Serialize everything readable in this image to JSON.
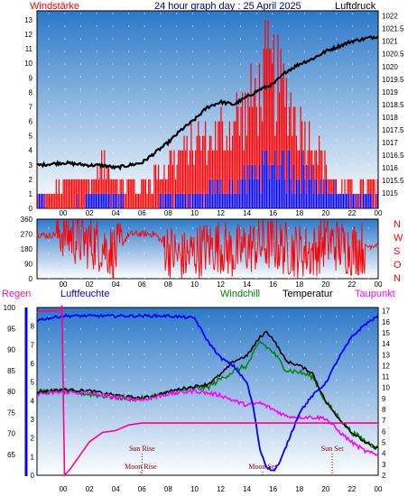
{
  "header": {
    "left_label": "Windstärke",
    "title": "24 hour graph day : 25 April 2025",
    "right_label": "Luftdruck"
  },
  "bottom_header": {
    "regen": "Regen",
    "luftfeuchte": "Luftfeuchte",
    "windchill": "Windchill",
    "temperatur": "Temperatur",
    "taupunkt": "Taupunkt"
  },
  "x_ticks": [
    "00",
    "02",
    "04",
    "06",
    "08",
    "10",
    "12",
    "14",
    "16",
    "18",
    "20",
    "22",
    "00"
  ],
  "colors": {
    "panel_top": "#2b78c8",
    "panel_bottom": "#ffffff",
    "wind": "#ff0000",
    "gust_blue": "#0000ff",
    "pressure": "#000000",
    "dir": "#ff0000",
    "humidity": "#0000ff",
    "temperature": "#000000",
    "windchill": "#008000",
    "dewpoint": "#ff00ff",
    "rain": "#ff0090"
  },
  "chart_data": [
    {
      "type": "line",
      "title": "24 hour graph day : 25 April 2025",
      "xlabel": "",
      "x_unit": "hour",
      "xlim": [
        -2,
        24
      ],
      "left_axis": {
        "label": "Windstärke",
        "ticks": [
          0,
          1,
          2,
          3,
          4,
          5,
          6,
          7,
          8,
          9,
          10,
          11,
          12,
          13
        ],
        "ylim": [
          0,
          13
        ]
      },
      "right_axis": {
        "label": "Luftdruck",
        "ticks": [
          "1015",
          "1015.5",
          "1016",
          "1016.5",
          "1017",
          "1017.5",
          "1018",
          "1018.5",
          "1019",
          "1019.5",
          "1020",
          "1020.5",
          "1021",
          "1021.5",
          "1022"
        ],
        "ylim": [
          1014.4,
          1022.2
        ]
      },
      "series": [
        {
          "name": "Luftdruck",
          "axis": "right",
          "x": [
            -2,
            0,
            2,
            3,
            4,
            5,
            6,
            8,
            9,
            10,
            11,
            12,
            13,
            14,
            15,
            16,
            17,
            18,
            19,
            20,
            21,
            22,
            23,
            24
          ],
          "y": [
            1016.1,
            1016.2,
            1016.1,
            1016.1,
            1016.0,
            1016.1,
            1016.2,
            1017.0,
            1017.5,
            1017.9,
            1018.4,
            1018.6,
            1018.5,
            1018.8,
            1019.1,
            1019.3,
            1019.8,
            1020.1,
            1020.3,
            1020.6,
            1020.8,
            1021.0,
            1021.1,
            1021.2
          ]
        },
        {
          "name": "Windstärke",
          "axis": "left",
          "x": [
            -2,
            0,
            1,
            2,
            3,
            4,
            5,
            6,
            7,
            8,
            9,
            10,
            11,
            12,
            13,
            14,
            15,
            15.5,
            16,
            16.5,
            17,
            18,
            19,
            20,
            21,
            22,
            23,
            24
          ],
          "y": [
            1,
            2,
            3,
            2,
            4,
            3,
            2,
            2,
            3,
            4,
            5,
            6,
            6,
            7,
            8,
            9,
            11,
            13,
            12,
            11,
            10,
            8,
            6,
            4,
            2,
            2,
            2,
            2
          ]
        },
        {
          "name": "Windstärke (min)",
          "axis": "left",
          "x": [
            -2,
            0,
            2,
            4,
            6,
            8,
            10,
            12,
            13,
            14,
            15,
            16,
            17,
            18,
            19,
            20,
            22,
            24
          ],
          "y": [
            1,
            0,
            1,
            1,
            0,
            1,
            1,
            2,
            2,
            3,
            4,
            5,
            4,
            4,
            3,
            2,
            1,
            1
          ]
        }
      ]
    },
    {
      "type": "line",
      "title": "",
      "x_unit": "hour",
      "xlim": [
        -2,
        24
      ],
      "left_axis": {
        "ticks": [
          0,
          90,
          180,
          270,
          360
        ],
        "ylim": [
          0,
          360
        ]
      },
      "right_axis": {
        "ticks": [
          "N",
          "W",
          "S",
          "O",
          "N"
        ]
      },
      "series": [
        {
          "name": "",
          "x": [
            -2,
            -1,
            0,
            1,
            2,
            3,
            4,
            5,
            6,
            7,
            8,
            9,
            10,
            11,
            12,
            13,
            14,
            15,
            16,
            17,
            18,
            19,
            20,
            21,
            22,
            23,
            24
          ],
          "y": [
            270,
            260,
            290,
            240,
            220,
            200,
            150,
            270,
            270,
            270,
            180,
            120,
            160,
            190,
            200,
            150,
            190,
            200,
            210,
            180,
            170,
            160,
            230,
            200,
            180,
            190,
            210
          ]
        }
      ]
    },
    {
      "type": "line",
      "title": "",
      "x_unit": "hour",
      "xlim": [
        -2,
        24
      ],
      "axes": {
        "humidity": {
          "label": "Luftfeuchte",
          "ticks": [
            65,
            70,
            75,
            80,
            85,
            90,
            95,
            100
          ],
          "ylim": [
            60,
            100
          ]
        },
        "rain": {
          "label": "Regen",
          "ticks": [
            0,
            1,
            2,
            3,
            4,
            5,
            6,
            7,
            8
          ],
          "ylim": [
            0,
            9
          ]
        },
        "temperature": {
          "label": "Temperatur",
          "ticks": [
            2,
            3,
            4,
            5,
            6,
            7,
            8,
            9,
            10,
            11,
            12,
            13,
            14,
            15,
            16,
            17
          ],
          "ylim": [
            2,
            17.3
          ]
        }
      },
      "series": [
        {
          "name": "Luftfeuchte",
          "axis": "humidity",
          "x": [
            -2,
            0,
            2,
            4,
            6,
            8,
            10,
            11,
            12,
            13,
            14,
            14.5,
            15,
            15.5,
            16,
            16.5,
            17,
            18,
            19,
            20,
            21,
            22,
            23,
            24
          ],
          "y": [
            97,
            98,
            98,
            98,
            98,
            98,
            97.5,
            92,
            88,
            86,
            82,
            76,
            66,
            62,
            61,
            63,
            67,
            75,
            79,
            82,
            88,
            93,
            96,
            98
          ]
        },
        {
          "name": "Temperatur",
          "axis": "temperature",
          "x": [
            -2,
            0,
            2,
            4,
            6,
            8,
            9,
            10,
            11,
            12,
            13,
            14,
            15,
            15.5,
            16,
            16.5,
            17,
            18,
            19,
            20,
            21,
            22,
            23,
            24
          ],
          "y": [
            9.6,
            9.8,
            9.7,
            9.3,
            9.0,
            9.6,
            9.9,
            10.1,
            10.3,
            11.2,
            12.4,
            12.9,
            14.6,
            15.1,
            14.4,
            13.4,
            12.4,
            12.0,
            11.3,
            8.7,
            7.2,
            5.9,
            5.0,
            4.4
          ]
        },
        {
          "name": "Windchill",
          "axis": "temperature",
          "x": [
            -2,
            0,
            2,
            4,
            6,
            8,
            10,
            11,
            12,
            13,
            14,
            15,
            16,
            17,
            18,
            19,
            20,
            22,
            24
          ],
          "y": [
            9.6,
            9.7,
            9.4,
            9.1,
            9.0,
            9.5,
            9.9,
            10.0,
            10.8,
            11.5,
            12.0,
            14.2,
            13.2,
            11.6,
            11.4,
            11.0,
            8.7,
            5.9,
            4.4
          ]
        },
        {
          "name": "Taupunkt",
          "axis": "temperature",
          "x": [
            -2,
            0,
            2,
            4,
            6,
            8,
            10,
            12,
            13,
            14,
            15,
            16,
            17,
            18,
            19,
            20,
            21,
            22,
            23,
            24
          ],
          "y": [
            9.4,
            9.6,
            9.5,
            9.1,
            8.9,
            9.4,
            9.7,
            9.3,
            8.8,
            8.4,
            8.6,
            8.0,
            7.4,
            7.3,
            7.3,
            7.2,
            6.0,
            5.0,
            4.2,
            3.8
          ]
        },
        {
          "name": "Regen",
          "axis": "rain",
          "x": [
            -2,
            -1.9,
            -0.3,
            -0.1,
            0.1,
            0.5,
            1,
            2,
            3,
            4,
            5,
            6,
            8,
            10,
            12,
            14,
            16,
            18,
            20,
            22,
            24
          ],
          "y": [
            8.7,
            8.8,
            8.8,
            9.1,
            0,
            0.3,
            0.8,
            1.8,
            2.3,
            2.4,
            2.7,
            2.8,
            2.8,
            2.8,
            2.8,
            2.8,
            2.8,
            2.8,
            2.8,
            2.8,
            2.8
          ]
        }
      ],
      "annotations": [
        {
          "text": "Sun Rise",
          "x": 6.0
        },
        {
          "text": "Moon Rise",
          "x": 5.9
        },
        {
          "text": "Moon Set",
          "x": 15.2
        },
        {
          "text": "Sun Set",
          "x": 20.5
        }
      ]
    }
  ]
}
